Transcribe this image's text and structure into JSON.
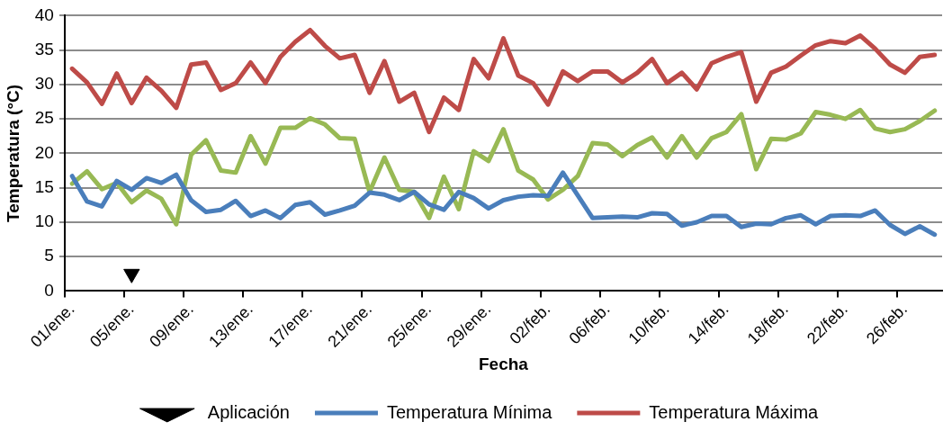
{
  "chart_data": {
    "type": "line",
    "xlabel": "Fecha",
    "ylabel": "Temperatura (°C)",
    "categories": [
      "01/ene.",
      null,
      null,
      null,
      "05/ene.",
      null,
      null,
      null,
      "09/ene.",
      null,
      null,
      null,
      "13/ene.",
      null,
      null,
      null,
      "17/ene.",
      null,
      null,
      null,
      "21/ene.",
      null,
      null,
      null,
      "25/ene.",
      null,
      null,
      null,
      "29/ene.",
      null,
      null,
      null,
      "02/feb.",
      null,
      null,
      null,
      "06/feb.",
      null,
      null,
      null,
      "10/feb.",
      null,
      null,
      null,
      "14/feb.",
      null,
      null,
      null,
      "18/feb.",
      null,
      null,
      null,
      "22/feb.",
      null,
      null,
      null,
      "26/feb.",
      null,
      null
    ],
    "series": [
      {
        "name": "Aplicación",
        "type": "scatter",
        "marker": "triangle",
        "color": "#000000",
        "values": [
          null,
          null,
          null,
          null,
          2.5,
          null,
          null,
          null,
          null,
          null,
          null,
          null,
          null,
          null,
          null,
          null,
          null,
          null,
          null,
          null,
          null,
          null,
          null,
          null,
          null,
          null,
          null,
          null,
          null,
          null,
          null,
          null,
          null,
          null,
          null,
          null,
          null,
          null,
          null,
          null,
          null,
          null,
          null,
          null,
          null,
          null,
          null,
          null,
          null,
          null,
          null,
          null,
          null,
          null,
          null,
          null,
          null,
          null,
          null
        ]
      },
      {
        "name": "Temperatura Mínima",
        "color": "#4a7ebb",
        "values": [
          16.7,
          13.0,
          12.3,
          16.0,
          14.7,
          16.4,
          15.7,
          16.9,
          13.2,
          11.5,
          11.8,
          13.1,
          10.9,
          11.7,
          10.6,
          12.5,
          12.9,
          11.1,
          11.7,
          12.4,
          14.3,
          14.0,
          13.2,
          14.4,
          12.6,
          11.8,
          14.4,
          13.5,
          12.0,
          13.2,
          13.7,
          13.9,
          13.8,
          17.2,
          13.9,
          10.6,
          10.7,
          10.8,
          10.7,
          11.3,
          11.2,
          9.5,
          10.0,
          10.9,
          10.9,
          9.3,
          9.8,
          9.7,
          10.6,
          11.0,
          9.7,
          10.9,
          11.0,
          10.9,
          11.7,
          9.6,
          8.3,
          9.4,
          8.2
        ]
      },
      {
        "name": "Temperatura Máxima",
        "color": "#be4b48",
        "values": [
          32.3,
          30.3,
          27.2,
          31.6,
          27.3,
          31.0,
          29.1,
          26.6,
          32.9,
          33.2,
          29.2,
          30.2,
          33.2,
          30.2,
          34.0,
          36.2,
          37.9,
          35.6,
          33.8,
          34.3,
          28.8,
          33.4,
          27.5,
          28.8,
          23.1,
          28.1,
          26.3,
          33.7,
          30.9,
          36.7,
          31.3,
          30.2,
          27.1,
          31.9,
          30.5,
          31.9,
          31.9,
          30.3,
          31.7,
          33.7,
          30.2,
          31.7,
          29.3,
          33.1,
          34.0,
          34.7,
          27.5,
          31.7,
          32.6,
          34.2,
          35.7,
          36.3,
          36.0,
          37.1,
          35.2,
          32.9,
          31.7,
          34.0,
          34.3
        ]
      },
      {
        "color": "#98b954",
        "values": [
          15.6,
          17.4,
          14.8,
          15.7,
          12.9,
          14.6,
          13.4,
          9.7,
          19.8,
          21.9,
          17.5,
          17.2,
          22.5,
          18.5,
          23.7,
          23.7,
          25.1,
          24.2,
          22.2,
          22.1,
          14.4,
          19.4,
          14.7,
          14.4,
          10.6,
          16.6,
          11.9,
          20.3,
          18.9,
          23.5,
          17.5,
          16.2,
          13.3,
          14.7,
          16.7,
          21.5,
          21.3,
          19.6,
          21.2,
          22.3,
          19.4,
          22.5,
          19.4,
          22.2,
          23.1,
          25.7,
          17.7,
          22.1,
          22.0,
          22.9,
          26.0,
          25.6,
          25.0,
          26.3,
          23.6,
          23.1,
          23.5,
          24.7,
          26.2
        ]
      }
    ],
    "ylim": [
      0,
      40
    ],
    "yticks": [
      0,
      5,
      10,
      15,
      20,
      25,
      30,
      35,
      40
    ],
    "grid": "y",
    "legend": "bottom",
    "marker": "none",
    "line_style": "solid"
  }
}
